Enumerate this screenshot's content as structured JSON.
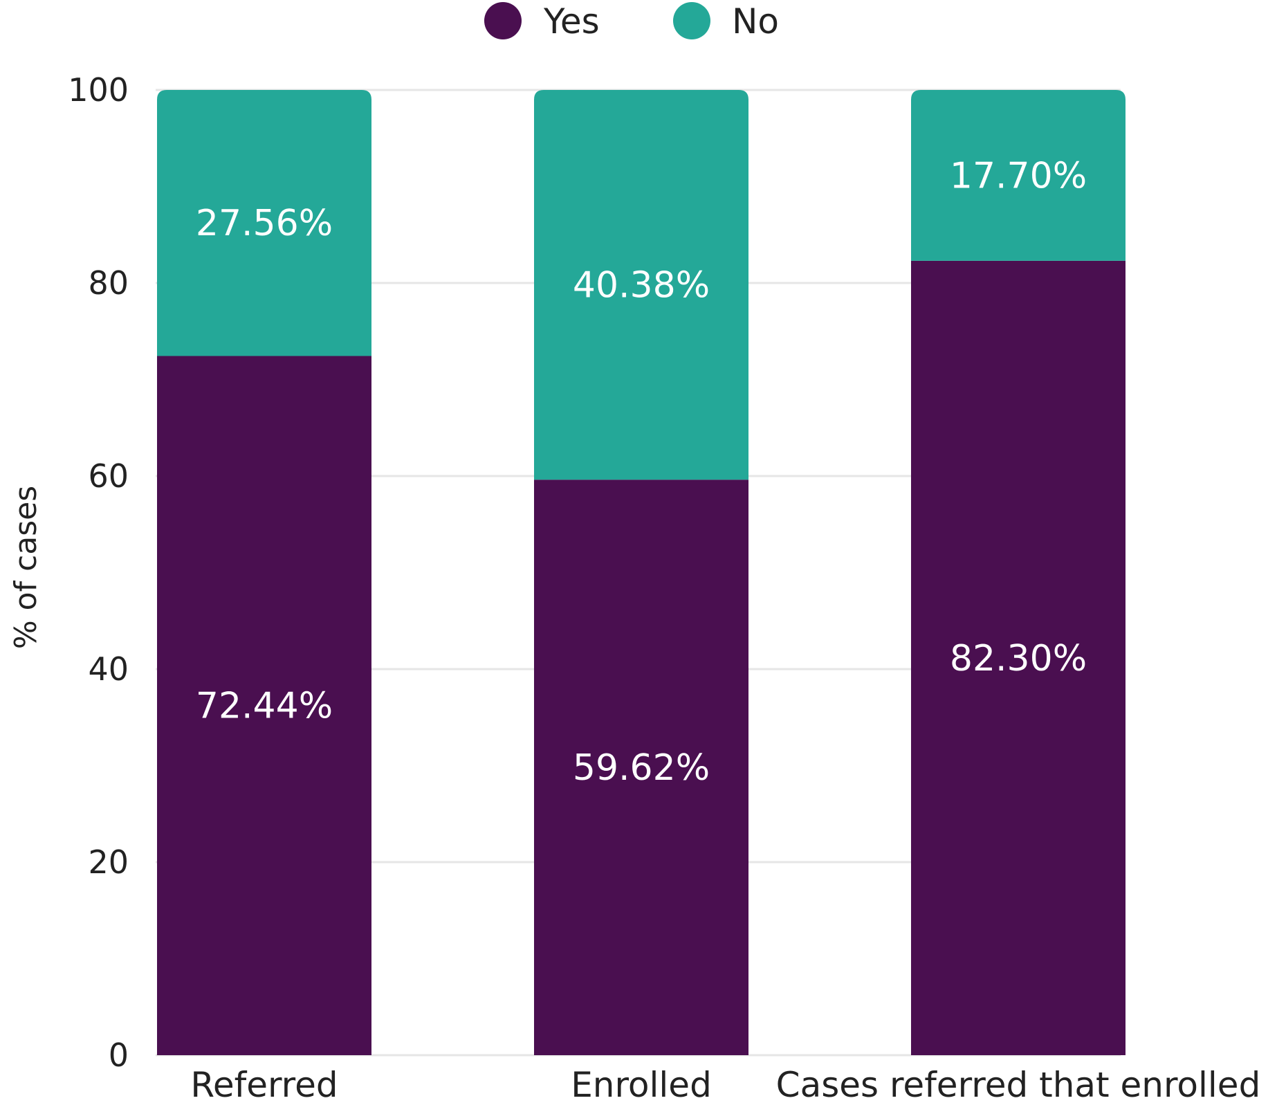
{
  "chart_data": {
    "type": "bar",
    "stacked": true,
    "categories": [
      "Referred",
      "Enrolled",
      "Cases referred that enrolled"
    ],
    "series": [
      {
        "name": "Yes",
        "values": [
          72.44,
          59.62,
          82.3
        ],
        "labels": [
          "72.44%",
          "59.62%",
          "82.30%"
        ],
        "color": "#4a0f50"
      },
      {
        "name": "No",
        "values": [
          27.56,
          40.38,
          17.7
        ],
        "labels": [
          "27.56%",
          "40.38%",
          "17.70%"
        ],
        "color": "#24a898"
      }
    ],
    "ylabel": "% of cases",
    "xlabel": "",
    "ylim": [
      0,
      100
    ],
    "yticks": [
      0,
      20,
      40,
      60,
      80,
      100
    ],
    "legend_position": "top",
    "grid": true,
    "grid_color": "#e6e6e6"
  }
}
